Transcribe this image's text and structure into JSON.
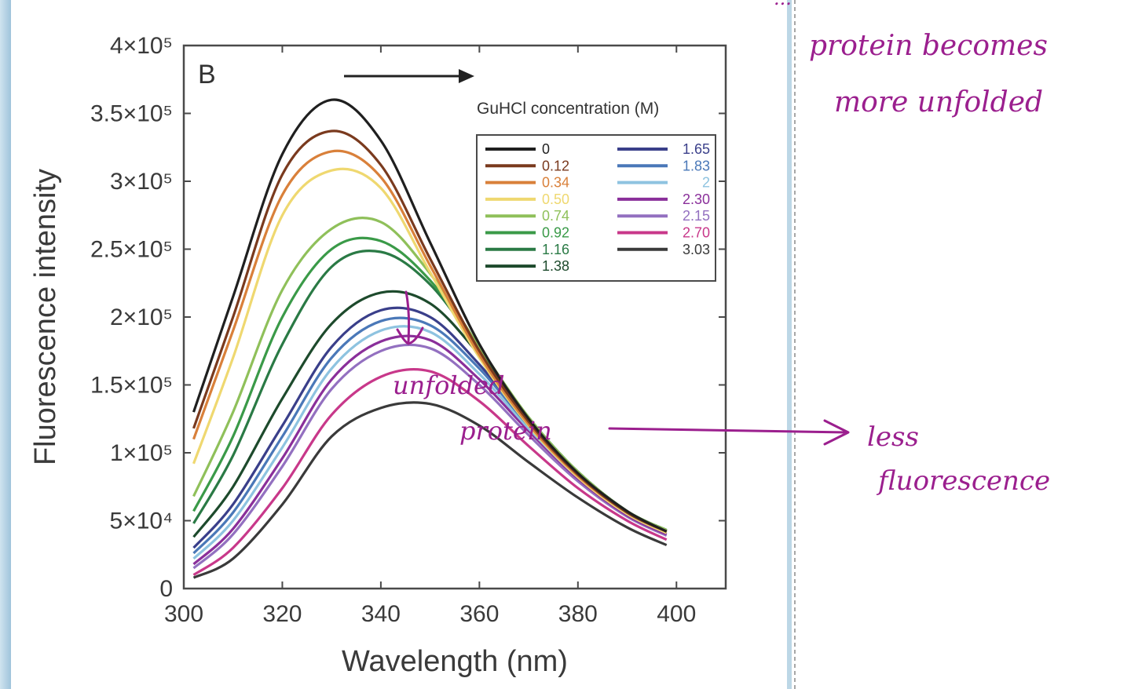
{
  "chart_data": {
    "type": "line",
    "panel_label": "B",
    "xlabel": "Wavelength (nm)",
    "ylabel": "Fluorescence intensity",
    "xlim": [
      300,
      410
    ],
    "ylim": [
      0,
      400000
    ],
    "x_ticks": [
      300,
      320,
      340,
      360,
      380,
      400
    ],
    "x_tick_labels": [
      "300",
      "320",
      "340",
      "360",
      "380",
      "400"
    ],
    "y_ticks": [
      0,
      50000,
      100000,
      150000,
      200000,
      250000,
      300000,
      350000,
      400000
    ],
    "y_tick_labels": [
      "0",
      "5×10⁴",
      "1×10⁵",
      "1.5×10⁵",
      "2×10⁵",
      "2.5×10⁵",
      "3×10⁵",
      "3.5×10⁵",
      "4×10⁵"
    ],
    "grid": false,
    "legend_title": "GuHCl concentration (M)",
    "legend_position": "upper-right",
    "x": [
      302,
      310,
      320,
      330,
      340,
      350,
      360,
      370,
      380,
      390,
      398
    ],
    "series": [
      {
        "name": "0",
        "color": "#1f1f1f",
        "peak_nm": 330,
        "values": [
          130000,
          215000,
          320000,
          360000,
          330000,
          255000,
          180000,
          125000,
          85000,
          57000,
          42000
        ]
      },
      {
        "name": "0.12",
        "color": "#7a3a1e",
        "peak_nm": 331,
        "values": [
          118000,
          200000,
          305000,
          337000,
          312000,
          243000,
          175000,
          123000,
          84000,
          56000,
          42000
        ]
      },
      {
        "name": "0.34",
        "color": "#d9803a",
        "peak_nm": 332,
        "values": [
          110000,
          190000,
          290000,
          322000,
          303000,
          238000,
          172000,
          121000,
          83000,
          56000,
          42000
        ]
      },
      {
        "name": "0.50",
        "color": "#efd870",
        "peak_nm": 333,
        "values": [
          92000,
          170000,
          275000,
          308000,
          295000,
          233000,
          170000,
          120000,
          82000,
          55000,
          41000
        ]
      },
      {
        "name": "0.74",
        "color": "#8fc05a",
        "peak_nm": 337,
        "values": [
          68000,
          130000,
          220000,
          265000,
          270000,
          232000,
          178000,
          126000,
          86000,
          57000,
          43000
        ]
      },
      {
        "name": "0.92",
        "color": "#3a9a48",
        "peak_nm": 338,
        "values": [
          57000,
          112000,
          200000,
          250000,
          256000,
          227000,
          177000,
          126000,
          86000,
          57000,
          43000
        ]
      },
      {
        "name": "1.16",
        "color": "#2a7a45",
        "peak_nm": 340,
        "values": [
          48000,
          98000,
          180000,
          237000,
          248000,
          224000,
          176000,
          126000,
          86000,
          57000,
          43000
        ]
      },
      {
        "name": "1.38",
        "color": "#1d4a2c",
        "peak_nm": 345,
        "values": [
          38000,
          75000,
          140000,
          195000,
          218000,
          210000,
          172000,
          125000,
          86000,
          57000,
          43000
        ]
      },
      {
        "name": "1.65",
        "color": "#3a3f8a",
        "peak_nm": 346,
        "values": [
          30000,
          62000,
          120000,
          178000,
          205000,
          200000,
          165000,
          122000,
          84000,
          56000,
          42000
        ]
      },
      {
        "name": "1.83",
        "color": "#4a78b8",
        "peak_nm": 346,
        "values": [
          26000,
          56000,
          112000,
          170000,
          197000,
          194000,
          162000,
          120000,
          83000,
          56000,
          42000
        ]
      },
      {
        "name": "2",
        "color": "#8ec3e0",
        "peak_nm": 347,
        "values": [
          22000,
          50000,
          104000,
          162000,
          190000,
          189000,
          158000,
          118000,
          82000,
          55000,
          41000
        ]
      },
      {
        "name": "2.30",
        "color": "#8a2f9a",
        "peak_nm": 347,
        "values": [
          18000,
          44000,
          96000,
          154000,
          182000,
          183000,
          154000,
          116000,
          81000,
          54000,
          40000
        ]
      },
      {
        "name": "2.15",
        "color": "#9370c0",
        "peak_nm": 347,
        "values": [
          15000,
          40000,
          90000,
          147000,
          175000,
          177000,
          150000,
          113000,
          79000,
          53000,
          39000
        ]
      },
      {
        "name": "2.70",
        "color": "#c8388a",
        "peak_nm": 348,
        "values": [
          10000,
          30000,
          74000,
          128000,
          156000,
          160000,
          138000,
          105000,
          74000,
          50000,
          36000
        ]
      },
      {
        "name": "3.03",
        "color": "#3a3a3a",
        "peak_nm": 348,
        "values": [
          8000,
          22000,
          62000,
          112000,
          133000,
          136000,
          120000,
          93000,
          67000,
          45000,
          32000
        ]
      }
    ]
  },
  "annotations": {
    "top_note_partial": "...",
    "top_note_line1": "protein becomes",
    "top_note_line2": "more unfolded",
    "mid_note_line1": "unfolded",
    "mid_note_line2": "protein",
    "side_note_line1": "less",
    "side_note_line2": "fluorescence"
  },
  "colors": {
    "ink": "#9b1f8e",
    "axes": "#4a4a4a",
    "panel_border": "#9fb4c6"
  }
}
